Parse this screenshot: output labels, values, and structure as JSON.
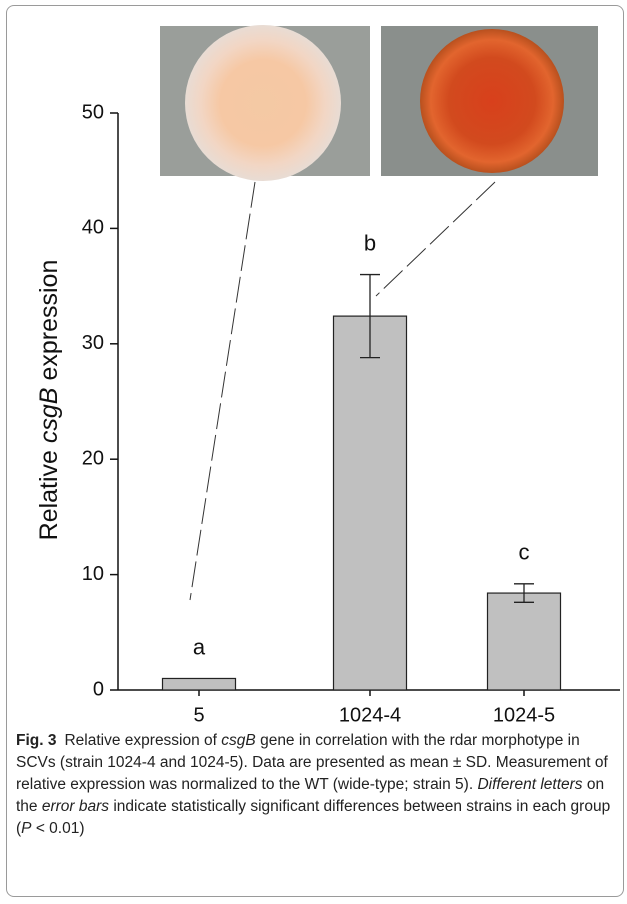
{
  "chart_data": {
    "type": "bar",
    "ylabel": [
      "Relative ",
      "csgB",
      " expression"
    ],
    "categories": [
      "5",
      "1024-4",
      "1024-5"
    ],
    "values": [
      1.0,
      32.4,
      8.4
    ],
    "errors": [
      null,
      3.6,
      0.8
    ],
    "annotations": [
      "a",
      "b",
      "c"
    ],
    "color": "#c0c0c0",
    "ylim": [
      0,
      50
    ],
    "yticks": [
      0,
      10,
      20,
      30,
      40,
      50
    ]
  },
  "caption": {
    "label": "Fig. 3",
    "runs": [
      {
        "text": "Relative expression of "
      },
      {
        "text": "csgB",
        "italic": true
      },
      {
        "text": " gene in correlation with the rdar morphotype in SCVs (strain 1024-4 and 1024-5). Data are presented as mean ± SD. Measurement of relative expression was normalized to the WT (wide-type; strain 5). "
      },
      {
        "text": "Different letters",
        "italic": true
      },
      {
        "text": " on the "
      },
      {
        "text": "error bars",
        "italic": true
      },
      {
        "text": " indicate statistically significant differences between strains in each group ("
      },
      {
        "text": "P",
        "italic": true
      },
      {
        "text": " < 0.01)"
      }
    ]
  }
}
